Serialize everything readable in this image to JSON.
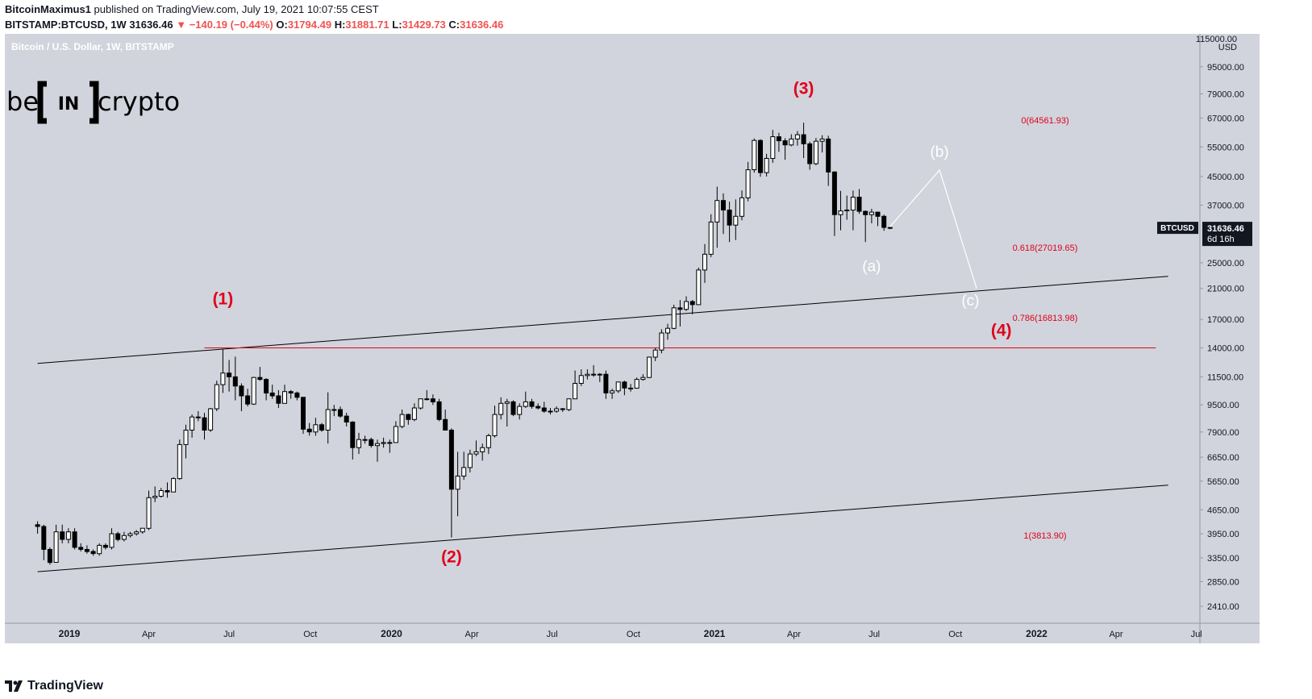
{
  "header": {
    "author": "BitcoinMaximus1",
    "published_text": "published on TradingView.com, July 19, 2021 10:07:55 CEST",
    "symbol": "BITSTAMP:BTCUSD, 1W",
    "last": "31636.46",
    "arrow": "▼",
    "change": "−140.19 (−0.44%)",
    "o_label": "O:",
    "o_value": "31794.49",
    "h_label": "H:",
    "h_value": "31881.71",
    "l_label": "L:",
    "l_value": "31429.73",
    "c_label": "C:",
    "c_value": "31636.46"
  },
  "pane_title": "Bitcoin / U.S. Dollar, 1W, BITSTAMP",
  "watermark": {
    "left": "be",
    "mid": "IN",
    "right": "crypto"
  },
  "price_axis": {
    "unit": "USD",
    "top_label": "115000.00",
    "ticks": [
      "95000.00",
      "79000.00",
      "67000.00",
      "55000.00",
      "45000.00",
      "37000.00",
      "25000.00",
      "21000.00",
      "17000.00",
      "14000.00",
      "11500.00",
      "9500.00",
      "7900.00",
      "6650.00",
      "5650.00",
      "4650.00",
      "3950.00",
      "3350.00",
      "2850.00",
      "2410.00"
    ],
    "current_symbol": "BTCUSD",
    "current_price": "31636.46",
    "countdown": "6d 16h"
  },
  "time_axis": {
    "labels": [
      "2019",
      "Apr",
      "Jul",
      "Oct",
      "2020",
      "Apr",
      "Jul",
      "Oct",
      "2021",
      "Apr",
      "Jul",
      "Oct",
      "2022",
      "Apr",
      "Jul"
    ]
  },
  "fib_levels": [
    {
      "label": "0(64561.93)"
    },
    {
      "label": "0.618(27019.65)"
    },
    {
      "label": "0.786(16813.98)"
    },
    {
      "label": "1(3813.90)"
    }
  ],
  "wave_labels": {
    "w1": "(1)",
    "w2": "(2)",
    "w3": "(3)",
    "w4": "(4)",
    "a": "(a)",
    "b": "(b)",
    "c": "(c)"
  },
  "footer": {
    "brand": "TradingView"
  },
  "colors": {
    "plot_bg": "#d1d4dc",
    "red": "#e0021b",
    "candle_up": "#ffffff",
    "candle_down": "#000000"
  },
  "chart_data": {
    "type": "candlestick",
    "title": "Bitcoin / U.S. Dollar, 1W, BITSTAMP",
    "timeframe": "1W",
    "scale": "log",
    "ylim": [
      2200,
      115000
    ],
    "xlim": [
      "2018-11-15",
      "2022-08-01"
    ],
    "grid": false,
    "ohlc_approx": [
      [
        "2018-11-26",
        4200,
        4300,
        3950,
        4150
      ],
      [
        "2018-12-03",
        4150,
        4200,
        3300,
        3550
      ],
      [
        "2018-12-10",
        3550,
        3600,
        3200,
        3250
      ],
      [
        "2018-12-17",
        3250,
        4200,
        3250,
        4000
      ],
      [
        "2018-12-24",
        4000,
        4200,
        3700,
        3800
      ],
      [
        "2018-12-31",
        3800,
        4100,
        3700,
        4000
      ],
      [
        "2019-01-07",
        4000,
        4100,
        3550,
        3600
      ],
      [
        "2019-01-14",
        3600,
        3700,
        3500,
        3550
      ],
      [
        "2019-01-21",
        3550,
        3650,
        3450,
        3500
      ],
      [
        "2019-01-28",
        3500,
        3550,
        3400,
        3450
      ],
      [
        "2019-02-04",
        3450,
        3700,
        3400,
        3650
      ],
      [
        "2019-02-11",
        3650,
        3700,
        3550,
        3600
      ],
      [
        "2019-02-18",
        3600,
        4100,
        3550,
        3950
      ],
      [
        "2019-02-25",
        3950,
        4000,
        3750,
        3800
      ],
      [
        "2019-03-04",
        3800,
        4000,
        3750,
        3900
      ],
      [
        "2019-03-11",
        3900,
        4000,
        3850,
        3950
      ],
      [
        "2019-03-18",
        3950,
        4050,
        3900,
        4000
      ],
      [
        "2019-03-25",
        4000,
        4100,
        3950,
        4100
      ],
      [
        "2019-04-01",
        4100,
        5300,
        4050,
        5050
      ],
      [
        "2019-04-08",
        5050,
        5450,
        4900,
        5100
      ],
      [
        "2019-04-15",
        5100,
        5400,
        5050,
        5300
      ],
      [
        "2019-04-22",
        5300,
        5600,
        5050,
        5250
      ],
      [
        "2019-04-29",
        5250,
        5800,
        5250,
        5750
      ],
      [
        "2019-05-06",
        5750,
        7500,
        5700,
        7250
      ],
      [
        "2019-05-13",
        7250,
        8300,
        6600,
        8000
      ],
      [
        "2019-05-20",
        8000,
        8900,
        7600,
        8750
      ],
      [
        "2019-05-27",
        8750,
        9100,
        8500,
        8700
      ],
      [
        "2019-06-03",
        8700,
        9000,
        7500,
        8000
      ],
      [
        "2019-06-10",
        8000,
        9300,
        7900,
        9250
      ],
      [
        "2019-06-17",
        9250,
        11200,
        9100,
        10900
      ],
      [
        "2019-06-24",
        10900,
        13900,
        10300,
        11800
      ],
      [
        "2019-07-01",
        11800,
        12900,
        10400,
        11500
      ],
      [
        "2019-07-08",
        11500,
        13200,
        9800,
        10800
      ],
      [
        "2019-07-15",
        10800,
        11000,
        9100,
        10100
      ],
      [
        "2019-07-22",
        10100,
        10600,
        9400,
        9550
      ],
      [
        "2019-07-29",
        9550,
        11500,
        9500,
        11450
      ],
      [
        "2019-08-05",
        11450,
        12300,
        11200,
        11300
      ],
      [
        "2019-08-12",
        11300,
        11400,
        9800,
        10300
      ],
      [
        "2019-08-19",
        10300,
        10900,
        9900,
        10100
      ],
      [
        "2019-08-26",
        10100,
        10500,
        9300,
        9600
      ],
      [
        "2019-09-02",
        9600,
        10900,
        9600,
        10400
      ],
      [
        "2019-09-09",
        10400,
        10500,
        9900,
        10300
      ],
      [
        "2019-09-16",
        10300,
        10400,
        9800,
        10000
      ],
      [
        "2019-09-23",
        10000,
        10000,
        7800,
        8050
      ],
      [
        "2019-09-30",
        8050,
        8400,
        7700,
        7900
      ],
      [
        "2019-10-07",
        7900,
        8700,
        7700,
        8300
      ],
      [
        "2019-10-14",
        8300,
        8400,
        7900,
        8000
      ],
      [
        "2019-10-21",
        8000,
        10350,
        7300,
        9200
      ],
      [
        "2019-10-28",
        9200,
        9500,
        8800,
        9200
      ],
      [
        "2019-11-04",
        9200,
        9400,
        8700,
        8800
      ],
      [
        "2019-11-11",
        8800,
        9000,
        8200,
        8450
      ],
      [
        "2019-11-18",
        8450,
        8500,
        6550,
        7100
      ],
      [
        "2019-11-25",
        7100,
        7850,
        6800,
        7500
      ],
      [
        "2019-12-02",
        7500,
        7700,
        7300,
        7500
      ],
      [
        "2019-12-09",
        7500,
        7600,
        7100,
        7200
      ],
      [
        "2019-12-16",
        7200,
        7500,
        6450,
        7300
      ],
      [
        "2019-12-23",
        7300,
        7600,
        7100,
        7350
      ],
      [
        "2019-12-30",
        7350,
        7500,
        6850,
        7350
      ],
      [
        "2020-01-06",
        7350,
        8500,
        7350,
        8200
      ],
      [
        "2020-01-13",
        8200,
        9200,
        8100,
        8900
      ],
      [
        "2020-01-20",
        8900,
        8950,
        8300,
        8600
      ],
      [
        "2020-01-27",
        8600,
        9600,
        8500,
        9300
      ],
      [
        "2020-02-03",
        9300,
        9900,
        9200,
        9900
      ],
      [
        "2020-02-10",
        9900,
        10500,
        9800,
        9900
      ],
      [
        "2020-02-17",
        9900,
        10200,
        9500,
        9700
      ],
      [
        "2020-02-24",
        9700,
        9900,
        8500,
        8600
      ],
      [
        "2020-03-02",
        8600,
        9200,
        8000,
        8000
      ],
      [
        "2020-03-09",
        8000,
        8100,
        3850,
        5350
      ],
      [
        "2020-03-16",
        5350,
        6900,
        4450,
        5850
      ],
      [
        "2020-03-23",
        5850,
        6900,
        5700,
        6200
      ],
      [
        "2020-03-30",
        6200,
        7000,
        6000,
        6800
      ],
      [
        "2020-04-06",
        6800,
        7450,
        6700,
        6900
      ],
      [
        "2020-04-13",
        6900,
        7300,
        6500,
        7100
      ],
      [
        "2020-04-20",
        7100,
        7800,
        6800,
        7700
      ],
      [
        "2020-04-27",
        7700,
        9450,
        7600,
        8900
      ],
      [
        "2020-05-04",
        8900,
        10000,
        8600,
        9600
      ],
      [
        "2020-05-11",
        9600,
        9900,
        8200,
        9700
      ],
      [
        "2020-05-18",
        9700,
        9800,
        8800,
        8900
      ],
      [
        "2020-05-25",
        8900,
        9600,
        8600,
        9400
      ],
      [
        "2020-06-01",
        9400,
        10400,
        9300,
        9700
      ],
      [
        "2020-06-08",
        9700,
        9900,
        9250,
        9400
      ],
      [
        "2020-06-15",
        9400,
        9600,
        9200,
        9300
      ],
      [
        "2020-06-22",
        9300,
        9700,
        9000,
        9100
      ],
      [
        "2020-06-29",
        9100,
        9300,
        8900,
        9100
      ],
      [
        "2020-07-06",
        9100,
        9400,
        9000,
        9250
      ],
      [
        "2020-07-13",
        9250,
        9300,
        9050,
        9200
      ],
      [
        "2020-07-20",
        9200,
        9900,
        9100,
        9900
      ],
      [
        "2020-07-27",
        9900,
        12000,
        9900,
        11000
      ],
      [
        "2020-08-03",
        11000,
        12100,
        10800,
        11600
      ],
      [
        "2020-08-10",
        11600,
        12100,
        11300,
        11700
      ],
      [
        "2020-08-17",
        11700,
        12450,
        11500,
        11650
      ],
      [
        "2020-08-24",
        11650,
        11800,
        11100,
        11700
      ],
      [
        "2020-08-31",
        11700,
        12000,
        9900,
        10300
      ],
      [
        "2020-09-07",
        10300,
        10600,
        9900,
        10450
      ],
      [
        "2020-09-14",
        10450,
        11100,
        10300,
        11100
      ],
      [
        "2020-09-21",
        11100,
        11200,
        10150,
        10650
      ],
      [
        "2020-09-28",
        10650,
        10950,
        10400,
        10650
      ],
      [
        "2020-10-05",
        10650,
        11450,
        10600,
        11300
      ],
      [
        "2020-10-12",
        11300,
        11700,
        11200,
        11450
      ],
      [
        "2020-10-19",
        11450,
        13200,
        11400,
        13150
      ],
      [
        "2020-10-26",
        13150,
        14000,
        12800,
        13800
      ],
      [
        "2020-11-02",
        13800,
        15900,
        13500,
        15500
      ],
      [
        "2020-11-09",
        15500,
        16500,
        14800,
        16000
      ],
      [
        "2020-11-16",
        16000,
        18800,
        15900,
        18400
      ],
      [
        "2020-11-23",
        18400,
        19400,
        16200,
        18200
      ],
      [
        "2020-11-30",
        18200,
        19900,
        18000,
        19200
      ],
      [
        "2020-12-07",
        19200,
        19400,
        17600,
        18800
      ],
      [
        "2020-12-14",
        18800,
        24200,
        18800,
        23800
      ],
      [
        "2020-12-21",
        23800,
        28400,
        21800,
        26500
      ],
      [
        "2020-12-28",
        26500,
        34800,
        26000,
        33000
      ],
      [
        "2021-01-04",
        33000,
        42000,
        27700,
        38200
      ],
      [
        "2021-01-11",
        38200,
        40100,
        30400,
        35800
      ],
      [
        "2021-01-18",
        35800,
        37900,
        28800,
        32300
      ],
      [
        "2021-01-25",
        32300,
        38500,
        29200,
        34300
      ],
      [
        "2021-02-01",
        34300,
        40900,
        33400,
        38900
      ],
      [
        "2021-02-08",
        38900,
        49700,
        38000,
        47100
      ],
      [
        "2021-02-15",
        47100,
        58300,
        46200,
        57500
      ],
      [
        "2021-02-22",
        57500,
        58000,
        44900,
        46200
      ],
      [
        "2021-03-01",
        46200,
        52500,
        45000,
        50900
      ],
      [
        "2021-03-08",
        50900,
        61800,
        49400,
        59000
      ],
      [
        "2021-03-15",
        59000,
        60600,
        53200,
        57400
      ],
      [
        "2021-03-22",
        57400,
        58400,
        50400,
        55800
      ],
      [
        "2021-03-29",
        55800,
        60000,
        55300,
        58100
      ],
      [
        "2021-04-05",
        58100,
        61300,
        55500,
        59800
      ],
      [
        "2021-04-12",
        59800,
        64900,
        51000,
        56200
      ],
      [
        "2021-04-19",
        56200,
        57000,
        47100,
        49100
      ],
      [
        "2021-04-26",
        49100,
        58500,
        48600,
        57200
      ],
      [
        "2021-05-03",
        57200,
        59600,
        53000,
        58100
      ],
      [
        "2021-05-10",
        58100,
        59400,
        42200,
        46400
      ],
      [
        "2021-05-17",
        46400,
        46600,
        30000,
        34700
      ],
      [
        "2021-05-24",
        34700,
        40800,
        31200,
        35600
      ],
      [
        "2021-05-31",
        35600,
        39500,
        33500,
        35800
      ],
      [
        "2021-06-07",
        35800,
        40900,
        31200,
        39100
      ],
      [
        "2021-06-14",
        39100,
        41300,
        34900,
        35500
      ],
      [
        "2021-06-21",
        35500,
        35700,
        28800,
        34700
      ],
      [
        "2021-06-28",
        34700,
        36100,
        32700,
        35300
      ],
      [
        "2021-07-05",
        35300,
        35100,
        32100,
        34300
      ],
      [
        "2021-07-12",
        34300,
        34700,
        31100,
        31800
      ],
      [
        "2021-07-19",
        31794.49,
        31881.71,
        31429.73,
        31636.46
      ]
    ],
    "trendlines": [
      {
        "name": "channel-upper",
        "points": [
          [
            "2018-11-26",
            12600
          ],
          [
            "2022-05-30",
            22800
          ]
        ]
      },
      {
        "name": "channel-lower",
        "points": [
          [
            "2018-11-26",
            3050
          ],
          [
            "2022-05-30",
            5500
          ]
        ]
      },
      {
        "name": "red-horizontal",
        "points": [
          [
            "2019-06-03",
            14000
          ],
          [
            "2022-05-16",
            14000
          ]
        ]
      }
    ],
    "projection": [
      [
        "2021-07-19",
        32000
      ],
      [
        "2021-09-13",
        47000
      ],
      [
        "2021-10-25",
        21000
      ]
    ],
    "annotations": [
      {
        "text": "(1)",
        "x": "2019-06-24",
        "y": 19600,
        "color": "red"
      },
      {
        "text": "(2)",
        "x": "2020-03-09",
        "y": 3380,
        "color": "red"
      },
      {
        "text": "(3)",
        "x": "2021-04-12",
        "y": 82000,
        "color": "red"
      },
      {
        "text": "(4)",
        "x": "2021-11-22",
        "y": 15800,
        "color": "red"
      },
      {
        "text": "(a)",
        "x": "2021-06-28",
        "y": 24500,
        "color": "white"
      },
      {
        "text": "(b)",
        "x": "2021-09-13",
        "y": 53500,
        "color": "white"
      },
      {
        "text": "(c)",
        "x": "2021-10-18",
        "y": 19400,
        "color": "white"
      }
    ]
  }
}
